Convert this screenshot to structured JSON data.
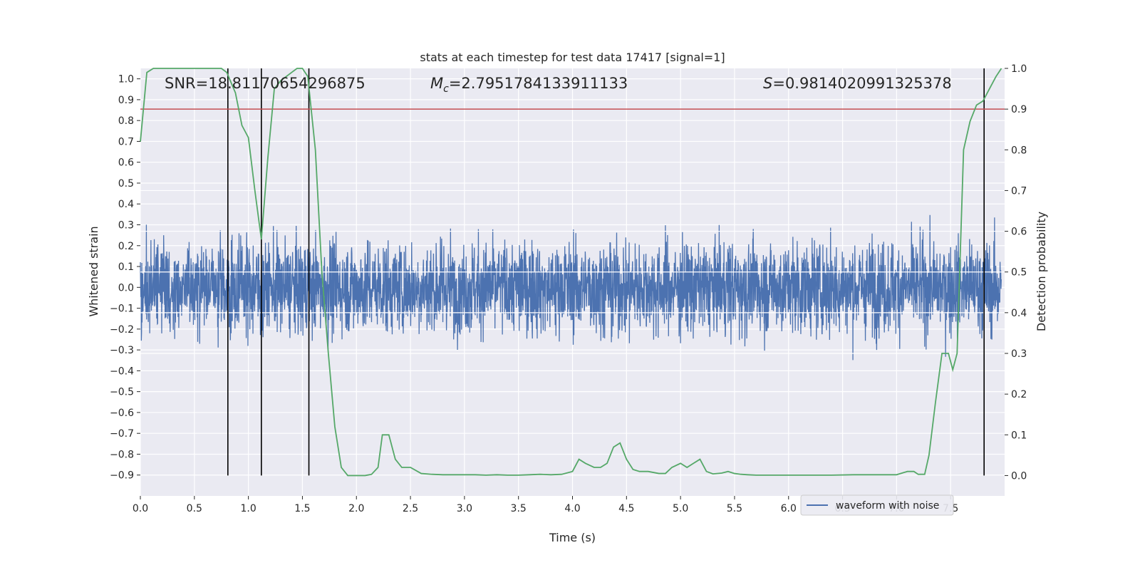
{
  "chart_data": {
    "type": "line",
    "title": "stats at each timestep for test data 17417 [signal=1]",
    "xlabel": "Time (s)",
    "ylabel_left": "Whitened strain",
    "ylabel_right": "Detection probability",
    "xlim": [
      0.0,
      8.0
    ],
    "ylim_left": [
      -1.0,
      1.05
    ],
    "ylim_right": [
      -0.05,
      1.0
    ],
    "xticks": [
      0.0,
      0.5,
      1.0,
      1.5,
      2.0,
      2.5,
      3.0,
      3.5,
      4.0,
      4.5,
      5.0,
      5.5,
      6.0,
      6.5,
      7.0,
      7.5
    ],
    "xtick_labels": [
      "0.0",
      "0.5",
      "1.0",
      "1.5",
      "2.0",
      "2.5",
      "3.0",
      "3.5",
      "4.0",
      "4.5",
      "5.0",
      "5.5",
      "6.0",
      "6.5",
      "7.0",
      "7.5"
    ],
    "yticks_left": [
      1.0,
      0.9,
      0.8,
      0.7,
      0.6,
      0.5,
      0.4,
      0.3,
      0.2,
      0.1,
      0.0,
      -0.1,
      -0.2,
      -0.3,
      -0.4,
      -0.5,
      -0.6,
      -0.7,
      -0.8,
      -0.9
    ],
    "ytick_labels_left": [
      "1.0",
      "0.9",
      "0.8",
      "0.7",
      "0.6",
      "0.5",
      "0.4",
      "0.3",
      "0.2",
      "0.1",
      "0.0",
      "−0.1",
      "−0.2",
      "−0.3",
      "−0.4",
      "−0.5",
      "−0.6",
      "−0.7",
      "−0.8",
      "−0.9"
    ],
    "yticks_right": [
      1.0,
      0.9,
      0.8,
      0.7,
      0.6,
      0.5,
      0.4,
      0.3,
      0.2,
      0.1,
      0.0
    ],
    "ytick_labels_right": [
      "1.0",
      "0.9",
      "0.8",
      "0.7",
      "0.6",
      "0.5",
      "0.4",
      "0.3",
      "0.2",
      "0.1",
      "0.0"
    ],
    "grid": true,
    "annotations": {
      "snr": "SNR=18.81170654296875",
      "mc_symbol": "M",
      "mc_sub": "c",
      "mc_value": "=2.7951784133911133",
      "s_symbol": "S",
      "s_value": "=0.9814020991325378"
    },
    "threshold_right": 0.9,
    "vertical_markers": [
      0.81,
      1.12,
      1.56,
      7.81
    ],
    "series": [
      {
        "name": "waveform with noise",
        "axis": "left",
        "style": "noise",
        "amplitude_rms": 0.2,
        "color": "#4c72b0"
      },
      {
        "name": "detection probability",
        "axis": "right",
        "color": "#55a868",
        "x": [
          0.0,
          0.06,
          0.12,
          0.2,
          0.3,
          0.4,
          0.5,
          0.6,
          0.7,
          0.75,
          0.8,
          0.88,
          0.94,
          1.0,
          1.06,
          1.12,
          1.18,
          1.24,
          1.3,
          1.4,
          1.45,
          1.5,
          1.55,
          1.62,
          1.68,
          1.74,
          1.8,
          1.86,
          1.92,
          2.0,
          2.08,
          2.14,
          2.2,
          2.24,
          2.3,
          2.36,
          2.42,
          2.5,
          2.6,
          2.7,
          2.8,
          2.9,
          3.0,
          3.1,
          3.2,
          3.3,
          3.4,
          3.5,
          3.6,
          3.7,
          3.8,
          3.9,
          4.0,
          4.06,
          4.12,
          4.2,
          4.26,
          4.32,
          4.38,
          4.44,
          4.5,
          4.56,
          4.62,
          4.7,
          4.8,
          4.86,
          4.92,
          5.0,
          5.06,
          5.12,
          5.18,
          5.24,
          5.3,
          5.38,
          5.44,
          5.5,
          5.56,
          5.62,
          5.7,
          5.8,
          5.9,
          6.0,
          6.2,
          6.4,
          6.6,
          6.8,
          7.0,
          7.1,
          7.16,
          7.2,
          7.26,
          7.3,
          7.36,
          7.42,
          7.48,
          7.52,
          7.56,
          7.62,
          7.68,
          7.74,
          7.8,
          7.86,
          7.92,
          7.97
        ],
        "values": [
          0.82,
          0.99,
          1.0,
          1.0,
          1.0,
          1.0,
          1.0,
          1.0,
          1.0,
          1.0,
          0.99,
          0.94,
          0.86,
          0.83,
          0.7,
          0.58,
          0.78,
          0.95,
          0.97,
          0.99,
          1.0,
          1.0,
          0.98,
          0.8,
          0.5,
          0.3,
          0.12,
          0.02,
          0.0,
          0.0,
          0.0,
          0.003,
          0.02,
          0.1,
          0.1,
          0.04,
          0.02,
          0.02,
          0.005,
          0.003,
          0.002,
          0.002,
          0.002,
          0.002,
          0.001,
          0.002,
          0.001,
          0.001,
          0.002,
          0.003,
          0.002,
          0.003,
          0.01,
          0.04,
          0.03,
          0.02,
          0.02,
          0.03,
          0.07,
          0.08,
          0.04,
          0.015,
          0.01,
          0.01,
          0.005,
          0.005,
          0.02,
          0.03,
          0.02,
          0.03,
          0.04,
          0.01,
          0.004,
          0.006,
          0.01,
          0.005,
          0.003,
          0.002,
          0.001,
          0.001,
          0.001,
          0.001,
          0.001,
          0.001,
          0.002,
          0.002,
          0.002,
          0.01,
          0.01,
          0.003,
          0.003,
          0.05,
          0.18,
          0.3,
          0.3,
          0.26,
          0.3,
          0.8,
          0.87,
          0.91,
          0.92,
          0.95,
          0.98,
          1.0
        ]
      }
    ],
    "legend": {
      "placement": "lower-right",
      "entries": [
        "waveform with noise"
      ]
    },
    "colors": {
      "plot_bg": "#eaeaf2",
      "grid": "#ffffff",
      "noise": "#4c72b0",
      "probability": "#55a868",
      "threshold": "#c44e52",
      "marker": "#000000"
    }
  }
}
